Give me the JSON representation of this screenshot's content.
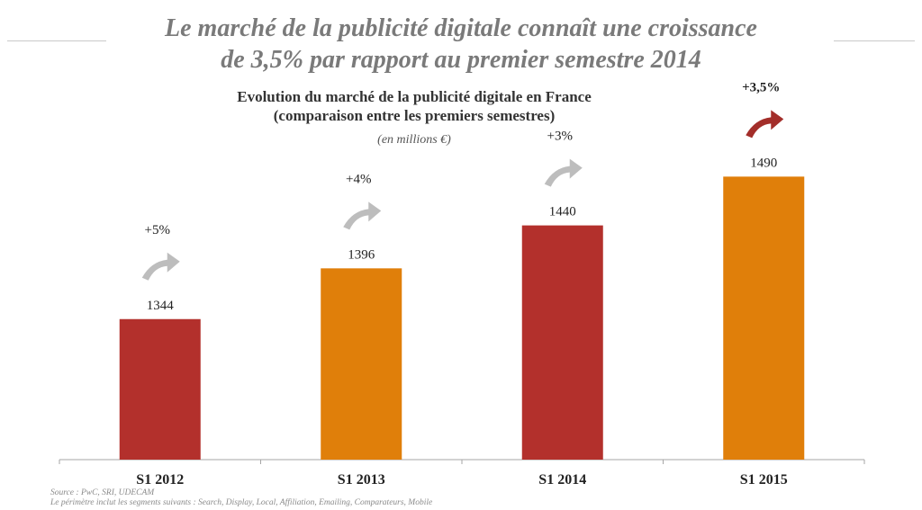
{
  "title": {
    "line1": "Le marché de la publicité digitale connaît une croissance",
    "line2": "de 3,5% par rapport au premier semestre 2014"
  },
  "chart_data": {
    "type": "bar",
    "title_line1": "Evolution du marché de la publicité digitale en France",
    "title_line2": "(comparaison entre les premiers semestres)",
    "unit": "(en millions €)",
    "categories": [
      "S1 2012",
      "S1 2013",
      "S1 2014",
      "S1 2015"
    ],
    "values": [
      1344,
      1396,
      1440,
      1490
    ],
    "growth": [
      "+5%",
      "+4%",
      "+3%",
      "+3,5%"
    ],
    "colors": [
      "#b3302c",
      "#e07f0a",
      "#b3302c",
      "#e07f0a"
    ],
    "arrow_colors": [
      "#bdbdbd",
      "#bdbdbd",
      "#bdbdbd",
      "#a32e2a"
    ],
    "ylim": [
      1200,
      1500
    ],
    "xlabel": "",
    "ylabel": ""
  },
  "footer": {
    "source": "Source : PwC, SRI, UDECAM",
    "scope": "Le périmètre inclut les segments suivants : Search, Display, Local, Affiliation, Emailing, Comparateurs, Mobile"
  }
}
